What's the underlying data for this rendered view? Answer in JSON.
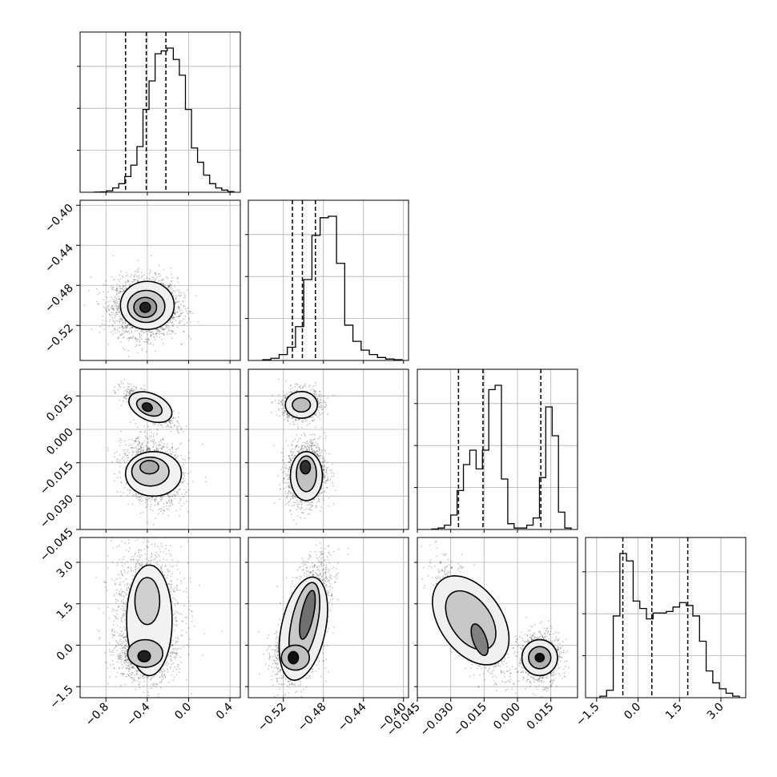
{
  "chart_data": {
    "type": "corner",
    "parameters": [
      {
        "range": [
          -1.05,
          0.5
        ],
        "ticks": [
          "−0.8",
          "−0.4",
          "0.0",
          "0.4"
        ],
        "tick_values": [
          -0.8,
          -0.4,
          0.0,
          0.4
        ]
      },
      {
        "range": [
          -0.555,
          -0.395
        ],
        "ticks": [
          "−0.52",
          "−0.48",
          "−0.44",
          "−0.40"
        ],
        "tick_values": [
          -0.52,
          -0.48,
          -0.44,
          -0.4
        ]
      },
      {
        "range": [
          -0.045,
          0.027
        ],
        "ticks": [
          "−0.045",
          "−0.030",
          "−0.015",
          "0.000",
          "0.015"
        ],
        "tick_values": [
          -0.045,
          -0.03,
          -0.015,
          0.0,
          0.015
        ]
      },
      {
        "range": [
          -1.9,
          3.9
        ],
        "ticks": [
          "−1.5",
          "0.0",
          "1.5",
          "3.0"
        ],
        "tick_values": [
          -1.5,
          0.0,
          1.5,
          3.0
        ]
      }
    ],
    "y_axis_ticks": [
      null,
      {
        "ticks": [
          "−0.40",
          "−0.44",
          "−0.48",
          "−0.52"
        ],
        "tick_values": [
          -0.4,
          -0.44,
          -0.48,
          -0.52
        ]
      },
      {
        "ticks": [
          "0.015",
          "0.000",
          "−0.015",
          "−0.030",
          "−0.045"
        ],
        "tick_values": [
          0.015,
          0.0,
          -0.015,
          -0.03,
          -0.045
        ]
      },
      {
        "ticks": [
          "3.0",
          "1.5",
          "0.0",
          "−1.5"
        ],
        "tick_values": [
          3.0,
          1.5,
          0.0,
          -1.5
        ]
      }
    ],
    "quantiles": [
      [
        -0.61,
        -0.41,
        -0.22
      ],
      [
        -0.511,
        -0.501,
        -0.488
      ],
      [
        -0.0265,
        -0.0155,
        0.0105
      ],
      [
        -0.55,
        0.5,
        1.8
      ]
    ],
    "histograms": [
      {
        "values": [
          0.1,
          0.3,
          1,
          3,
          6,
          11,
          19,
          32,
          58,
          78,
          97,
          99,
          101,
          93,
          82,
          58,
          31,
          21,
          12,
          6,
          3,
          1.5,
          0.5
        ]
      },
      {
        "values": [
          0.5,
          1.5,
          4,
          9,
          23,
          55,
          85,
          97,
          98,
          66,
          24,
          13,
          7,
          4,
          2,
          1,
          0.5
        ]
      },
      {
        "values": [
          0.3,
          1,
          3,
          10,
          27,
          45,
          55,
          42,
          55,
          97,
          100,
          35,
          4,
          1,
          1,
          3,
          8,
          36,
          85,
          65,
          12,
          1
        ]
      },
      {
        "values": [
          1,
          5,
          55,
          97,
          92,
          65,
          60,
          53,
          57,
          57,
          58,
          61,
          64,
          62,
          55,
          38,
          18,
          10,
          6,
          3,
          1
        ]
      }
    ],
    "grid": true
  }
}
